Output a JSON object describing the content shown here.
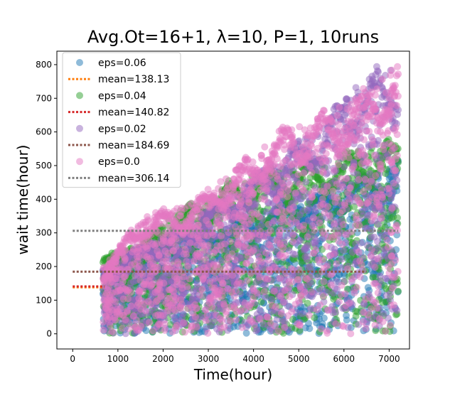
{
  "chart_data": {
    "type": "scatter",
    "title": "Avg.Ot=16+1, λ=10, P=1, 10runs",
    "xlabel": "Time(hour)",
    "ylabel": "wait time(hour)",
    "xlim": [
      -350,
      7450
    ],
    "ylim": [
      -45,
      840
    ],
    "xticks": [
      0,
      1000,
      2000,
      3000,
      4000,
      5000,
      6000,
      7000
    ],
    "yticks": [
      0,
      100,
      200,
      300,
      400,
      500,
      600,
      700,
      800
    ],
    "legend_position": "upper-left",
    "grid": false,
    "series": [
      {
        "name": "eps=0.06",
        "kind": "scatter",
        "color": "#1f77b4",
        "x_range": [
          670,
          7200
        ],
        "envelope": {
          "x": [
            700,
            1500,
            2500,
            3500,
            4500,
            5500,
            6500,
            7200
          ],
          "low": [
            0,
            0,
            0,
            0,
            0,
            0,
            0,
            0
          ],
          "high": [
            220,
            260,
            280,
            330,
            380,
            420,
            470,
            520
          ]
        }
      },
      {
        "name": "mean=138.13",
        "kind": "mean-line",
        "color": "#ff7f0e",
        "y": 138.13,
        "x_range": [
          0,
          700
        ]
      },
      {
        "name": "eps=0.04",
        "kind": "scatter",
        "color": "#2ca02c",
        "x_range": [
          670,
          7200
        ],
        "envelope": {
          "x": [
            700,
            1500,
            2500,
            3500,
            4500,
            5500,
            6500,
            7200
          ],
          "low": [
            0,
            0,
            0,
            0,
            0,
            0,
            0,
            0
          ],
          "high": [
            230,
            270,
            380,
            450,
            490,
            520,
            550,
            580
          ]
        }
      },
      {
        "name": "mean=140.82",
        "kind": "mean-line",
        "color": "#d62728",
        "y": 140.82,
        "x_range": [
          0,
          700
        ]
      },
      {
        "name": "eps=0.02",
        "kind": "scatter",
        "color": "#9467bd",
        "x_range": [
          670,
          7200
        ],
        "envelope": {
          "x": [
            700,
            1500,
            2500,
            3500,
            4500,
            5500,
            6500,
            7200
          ],
          "low": [
            0,
            0,
            0,
            0,
            0,
            0,
            0,
            0
          ],
          "high": [
            200,
            260,
            320,
            420,
            520,
            620,
            770,
            800
          ]
        }
      },
      {
        "name": "mean=184.69",
        "kind": "mean-line",
        "color": "#8c564b",
        "y": 184.69,
        "x_range": [
          0,
          6500
        ]
      },
      {
        "name": "eps=0.0",
        "kind": "scatter",
        "color": "#e377c2",
        "x_range": [
          670,
          7200
        ],
        "envelope": {
          "x": [
            700,
            1500,
            2500,
            3500,
            4500,
            5500,
            6500,
            7200
          ],
          "low": [
            0,
            0,
            0,
            0,
            0,
            0,
            0,
            0
          ],
          "high": [
            200,
            350,
            380,
            480,
            600,
            650,
            720,
            800
          ]
        }
      },
      {
        "name": "mean=306.14",
        "kind": "mean-line",
        "color": "#7f7f7f",
        "y": 306.14,
        "x_range": [
          0,
          7200
        ]
      }
    ]
  }
}
